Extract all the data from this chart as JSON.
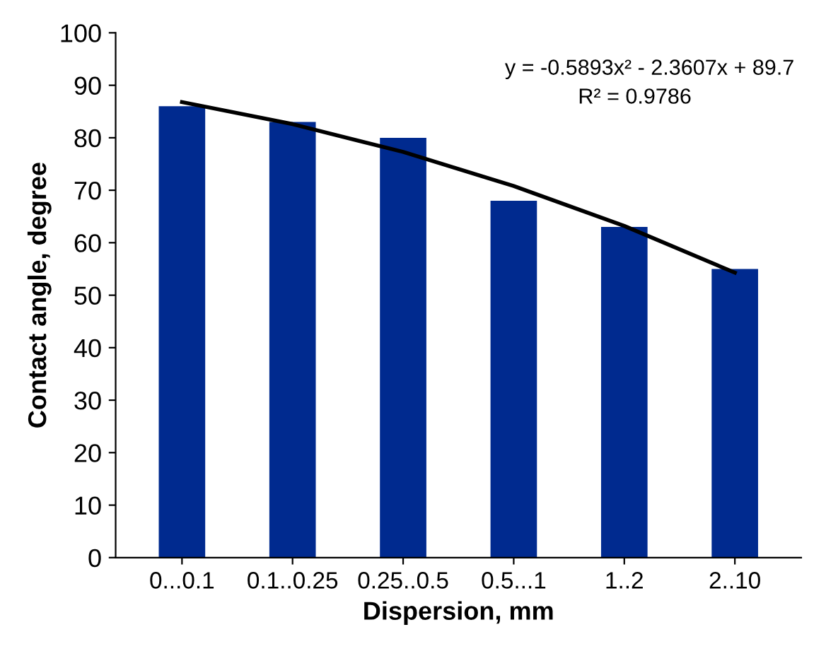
{
  "chart_data": {
    "type": "bar",
    "xlabel": "Dispersion, mm",
    "ylabel": "Contact angle, degree",
    "categories": [
      "0...0.1",
      "0.1..0.25",
      "0.25..0.5",
      "0.5...1",
      "1..2",
      "2..10"
    ],
    "series": [
      {
        "color": "#002a8f",
        "values": [
          86,
          83,
          80,
          68,
          63,
          55
        ]
      },
      {
        "type": "line",
        "color": "#000000",
        "x": [
          "0...0.1",
          "0.1..0.25",
          "0.25..0.5",
          "0.5...1",
          "1..2",
          "2..10"
        ],
        "values": [
          86.8,
          82.6,
          77.3,
          70.8,
          63.2,
          54.3
        ]
      }
    ],
    "ylim": [
      0,
      100
    ],
    "yticks": [
      0,
      10,
      20,
      30,
      40,
      50,
      60,
      70,
      80,
      90,
      100
    ],
    "grid": false,
    "legend": false,
    "annotations": [
      "y = -0.5893x² - 2.3607x + 89.7",
      "R² = 0.9786"
    ]
  }
}
